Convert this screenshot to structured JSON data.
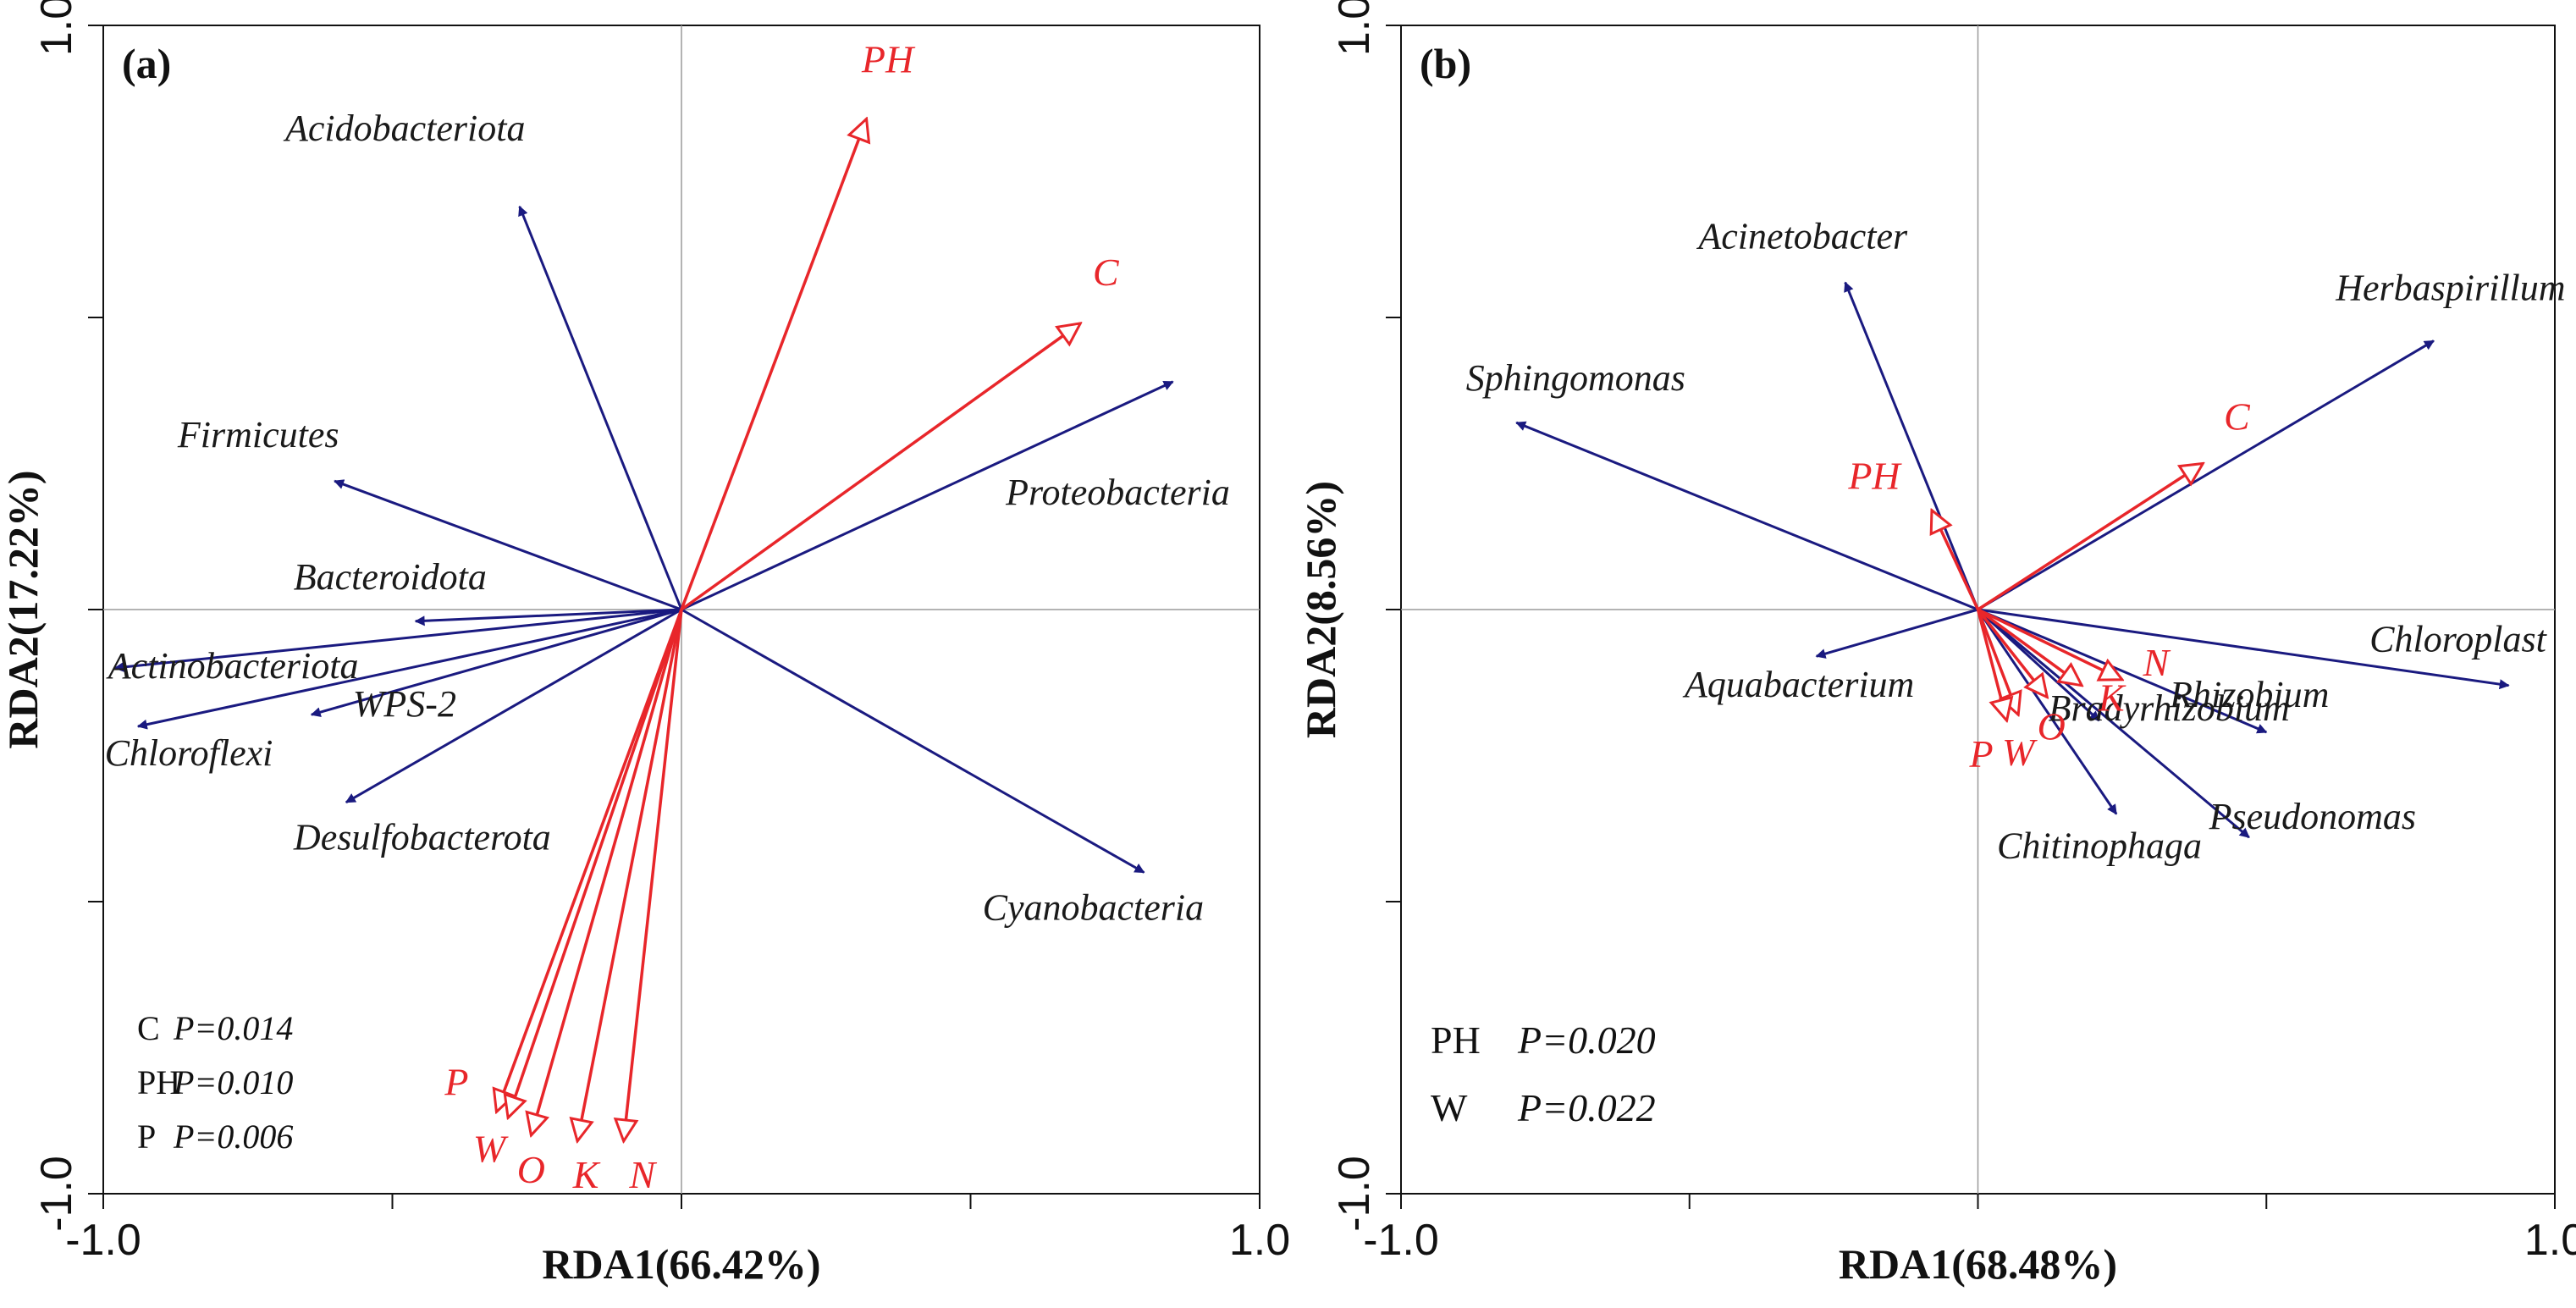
{
  "colors": {
    "species": "#1a1a80",
    "env": "#e8262a",
    "axis": "#111111",
    "zero": "#9a9a9a"
  },
  "chart_data": [
    {
      "type": "scatter",
      "panel_label": "(a)",
      "xlabel": "RDA1(66.42%)",
      "ylabel": "RDA2(17.22%)",
      "xlim": [
        -1.0,
        1.0
      ],
      "ylim": [
        -1.0,
        1.0
      ],
      "xtick_labels": [
        "-1.0",
        "1.0"
      ],
      "ytick_labels": [
        "-1.0",
        "1.0"
      ],
      "species": [
        {
          "name": "Acidobacteriota",
          "x": -0.28,
          "y": 0.69
        },
        {
          "name": "Proteobacteria",
          "x": 0.85,
          "y": 0.39
        },
        {
          "name": "Firmicutes",
          "x": -0.6,
          "y": 0.22
        },
        {
          "name": "Bacteroidota",
          "x": -0.46,
          "y": -0.02
        },
        {
          "name": "Actinobacteriota",
          "x": -0.98,
          "y": -0.1
        },
        {
          "name": "WPS-2",
          "x": -0.64,
          "y": -0.18
        },
        {
          "name": "Chloroflexi",
          "x": -0.94,
          "y": -0.2
        },
        {
          "name": "Desulfobacterota",
          "x": -0.58,
          "y": -0.33
        },
        {
          "name": "Cyanobacteria",
          "x": 0.8,
          "y": -0.45
        }
      ],
      "env": [
        {
          "name": "PH",
          "x": 0.32,
          "y": 0.84
        },
        {
          "name": "C",
          "x": 0.69,
          "y": 0.49
        },
        {
          "name": "P",
          "x": -0.32,
          "y": -0.86
        },
        {
          "name": "W",
          "x": -0.3,
          "y": -0.87
        },
        {
          "name": "O",
          "x": -0.26,
          "y": -0.9
        },
        {
          "name": "K",
          "x": -0.18,
          "y": -0.91
        },
        {
          "name": "N",
          "x": -0.1,
          "y": -0.91
        }
      ],
      "stats": [
        {
          "var": "C",
          "p": "P=0.014"
        },
        {
          "var": "PH",
          "p": "P=0.010"
        },
        {
          "var": "P",
          "p": "P=0.006"
        }
      ]
    },
    {
      "type": "scatter",
      "panel_label": "(b)",
      "xlabel": "RDA1(68.48%)",
      "ylabel": "RDA2(8.56%)",
      "xlim": [
        -1.0,
        1.0
      ],
      "ylim": [
        -1.0,
        1.0
      ],
      "xtick_labels": [
        "-1.0",
        "1.0"
      ],
      "ytick_labels": [
        "-1.0",
        "1.0"
      ],
      "species": [
        {
          "name": "Acinetobacter",
          "x": -0.23,
          "y": 0.56
        },
        {
          "name": "Herbaspirillum",
          "x": 0.79,
          "y": 0.46
        },
        {
          "name": "Sphingomonas",
          "x": -0.8,
          "y": 0.32
        },
        {
          "name": "Aquabacterium",
          "x": -0.28,
          "y": -0.08
        },
        {
          "name": "Chloroplast",
          "x": 0.92,
          "y": -0.13
        },
        {
          "name": "Rhizobium",
          "x": 0.5,
          "y": -0.21
        },
        {
          "name": "Pseudonomas",
          "x": 0.47,
          "y": -0.39
        },
        {
          "name": "Chitinophaga",
          "x": 0.24,
          "y": -0.35
        },
        {
          "name": "Bradyrhizobium",
          "x": 0.21,
          "y": -0.19
        }
      ],
      "env": [
        {
          "name": "C",
          "x": 0.39,
          "y": 0.25
        },
        {
          "name": "PH",
          "x": -0.08,
          "y": 0.17
        },
        {
          "name": "N",
          "x": 0.25,
          "y": -0.12
        },
        {
          "name": "K",
          "x": 0.18,
          "y": -0.13
        },
        {
          "name": "O",
          "x": 0.12,
          "y": -0.15
        },
        {
          "name": "W",
          "x": 0.07,
          "y": -0.18
        },
        {
          "name": "P",
          "x": 0.05,
          "y": -0.19
        }
      ],
      "stats": [
        {
          "var": "PH",
          "p": "P=0.020"
        },
        {
          "var": "W",
          "p": "P=0.022"
        }
      ]
    }
  ]
}
